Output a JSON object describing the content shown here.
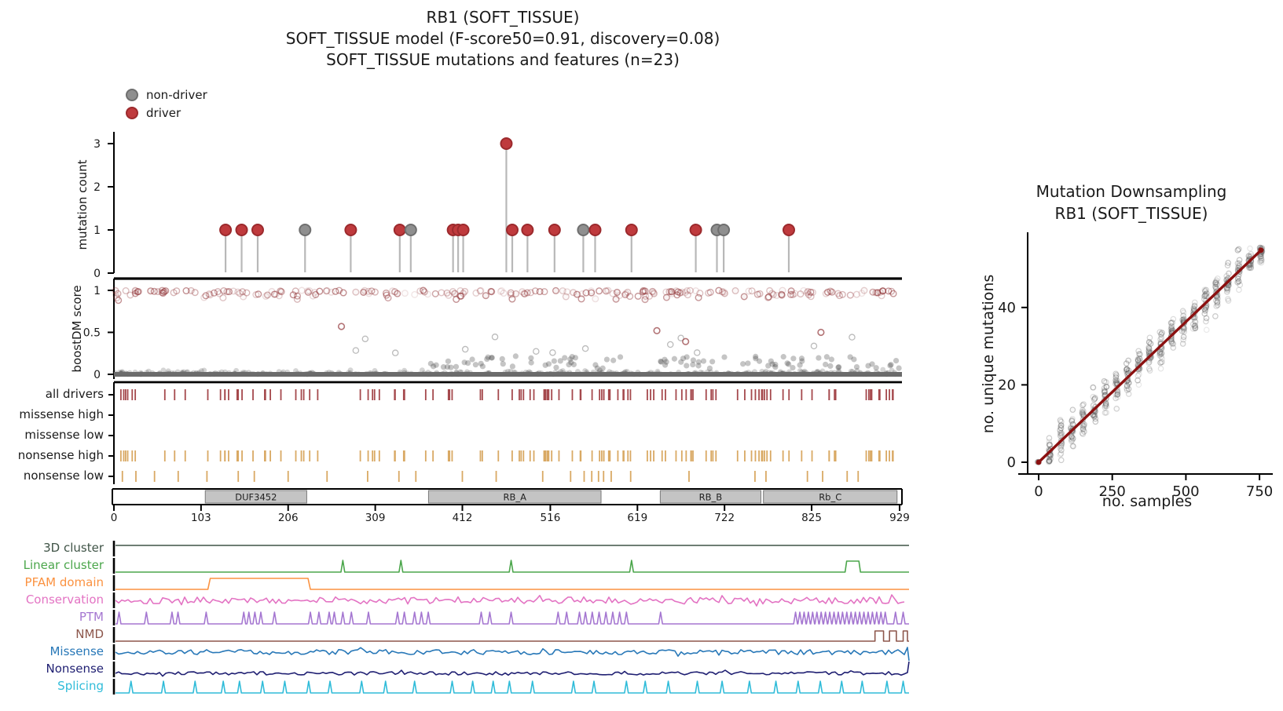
{
  "labels": {
    "title1": "RB1 (SOFT_TISSUE)",
    "title2": "SOFT_TISSUE model (F-score50=0.91, discovery=0.08)",
    "title3": "SOFT_TISSUE mutations and features (n=23)",
    "legend_nondriver": "non-driver",
    "legend_driver": "driver",
    "mutation_ylabel": "mutation count",
    "boostdm_ylabel": "boostDM score",
    "ds_title1": "Mutation Downsampling",
    "ds_title2": "RB1 (SOFT_TISSUE)",
    "ds_xlabel": "no. samples",
    "ds_ylabel": "no. unique mutations"
  },
  "colors": {
    "driver": "#bf3a3d",
    "driver_edge": "#9c2a2d",
    "nondriver": "#8f8f8f",
    "nondriver_edge": "#6f6f6f",
    "stem": "#b8b8b8",
    "boost_red": "#8b2a2d",
    "boost_gray": "#2d2d2d",
    "zero_band": "#6b6b6b",
    "all_drivers_tick": "#a5494d",
    "nonsense_tick": "#d9a964",
    "domain_box_fill": "#c4c4c4",
    "domain_box_edge": "#7a7a7a",
    "ds_dot": "#505050",
    "ds_line": "#8b1010",
    "axis": "#000000"
  },
  "chart_data": [
    {
      "type": "lollipop",
      "id": "mutation_count",
      "ylabel": "mutation count",
      "yticks": [
        0,
        1,
        2,
        3
      ],
      "xlim": [
        0,
        929
      ],
      "n_mutations": 23,
      "points": [
        {
          "x": 132,
          "count": 1,
          "class": "driver"
        },
        {
          "x": 151,
          "count": 1,
          "class": "driver"
        },
        {
          "x": 170,
          "count": 1,
          "class": "driver"
        },
        {
          "x": 226,
          "count": 1,
          "class": "non-driver"
        },
        {
          "x": 280,
          "count": 1,
          "class": "driver"
        },
        {
          "x": 338,
          "count": 1,
          "class": "driver"
        },
        {
          "x": 351,
          "count": 1,
          "class": "non-driver"
        },
        {
          "x": 401,
          "count": 1,
          "class": "driver"
        },
        {
          "x": 407,
          "count": 1,
          "class": "driver"
        },
        {
          "x": 413,
          "count": 1,
          "class": "driver"
        },
        {
          "x": 464,
          "count": 3,
          "class": "driver"
        },
        {
          "x": 471,
          "count": 1,
          "class": "driver"
        },
        {
          "x": 489,
          "count": 1,
          "class": "driver"
        },
        {
          "x": 521,
          "count": 1,
          "class": "driver"
        },
        {
          "x": 555,
          "count": 1,
          "class": "non-driver"
        },
        {
          "x": 569,
          "count": 1,
          "class": "driver"
        },
        {
          "x": 612,
          "count": 1,
          "class": "driver"
        },
        {
          "x": 688,
          "count": 1,
          "class": "driver"
        },
        {
          "x": 713,
          "count": 1,
          "class": "non-driver"
        },
        {
          "x": 721,
          "count": 1,
          "class": "non-driver"
        },
        {
          "x": 798,
          "count": 1,
          "class": "driver"
        }
      ]
    },
    {
      "type": "scatter",
      "id": "boostdm_score",
      "ylabel": "boostDM score",
      "yticks": [
        0,
        0.5,
        1
      ],
      "xlim": [
        0,
        929
      ],
      "bands": {
        "high_band": {
          "n": 230,
          "y_center": 0.96,
          "spread": 0.05,
          "color": "red",
          "seed": 11
        },
        "zero_band": {
          "n": 320,
          "y_center": 0.01,
          "spread": 0.03,
          "color": "gray",
          "seed": 23
        },
        "low_clusters": {
          "n": 95,
          "y_range": [
            0.07,
            0.22
          ],
          "x_ranges": [
            [
              372,
              600
            ],
            [
              640,
              929
            ]
          ],
          "seed": 37
        },
        "sparse_mid": {
          "n": 13,
          "y_range": [
            0.24,
            0.45
          ],
          "x_range": [
            230,
            929
          ],
          "seed": 51
        }
      },
      "red_outliers": [
        {
          "x": 269,
          "y": 0.57
        },
        {
          "x": 642,
          "y": 0.52
        },
        {
          "x": 676,
          "y": 0.39
        },
        {
          "x": 836,
          "y": 0.5
        }
      ]
    },
    {
      "type": "ticks",
      "id": "consequence_tracks",
      "xlim": [
        0,
        929
      ],
      "rows": [
        {
          "label": "all drivers",
          "style": "dark_red",
          "n": 120,
          "seed": 7,
          "gaps": [
            [
              28,
              46
            ],
            [
              254,
              280
            ],
            [
              862,
              888
            ]
          ]
        },
        {
          "label": "missense high",
          "style": "empty"
        },
        {
          "label": "missense low",
          "style": "empty"
        },
        {
          "label": "nonsense high",
          "style": "orange_same_as_all_drivers"
        },
        {
          "label": "nonsense low",
          "style": "orange_sparse",
          "positions": [
            10,
            26,
            48,
            76,
            110,
            147,
            166,
            206,
            252,
            300,
            337,
            357,
            412,
            452,
            507,
            540,
            556,
            565,
            573,
            579,
            588,
            611,
            680,
            758,
            771,
            820,
            838,
            867,
            880
          ]
        }
      ]
    },
    {
      "type": "domain_map",
      "id": "protein_domains",
      "xticks": [
        0,
        103,
        206,
        309,
        412,
        516,
        619,
        722,
        825,
        929
      ],
      "xlim": [
        0,
        929
      ],
      "boxes": [
        {
          "label": "DUF3452",
          "start": 108,
          "end": 228
        },
        {
          "label": "RB_A",
          "start": 372,
          "end": 576
        },
        {
          "label": "RB_B",
          "start": 646,
          "end": 765
        },
        {
          "label": "Rb_C",
          "start": 768,
          "end": 926
        }
      ]
    },
    {
      "type": "line_tracks",
      "id": "feature_tracks",
      "xlim": [
        0,
        929
      ],
      "rows": [
        {
          "label": "3D cluster",
          "color": "#3f5346",
          "kind": "flat"
        },
        {
          "label": "Linear cluster",
          "color": "#4ba64b",
          "kind": "spikes",
          "spikes": [
            268,
            336,
            465,
            606
          ],
          "pulses": [
            [
              856,
              874
            ]
          ]
        },
        {
          "label": "PFAM domain",
          "color": "#fb9240",
          "kind": "step",
          "steps": [
            [
              110,
              230
            ]
          ]
        },
        {
          "label": "Conservation",
          "color": "#e373c3",
          "kind": "noise",
          "amp": 4.5,
          "seed": 101
        },
        {
          "label": "PTM",
          "color": "#a577d1",
          "kind": "spikes",
          "spikes": [
            6,
            38,
            68,
            75,
            108,
            152,
            158,
            165,
            172,
            188,
            230,
            240,
            252,
            258,
            268,
            278,
            298,
            332,
            340,
            352,
            360,
            368,
            430,
            440,
            465,
            520,
            530,
            545,
            552,
            560,
            568,
            576,
            584,
            592,
            600,
            640,
            915,
            924
          ],
          "dense_ranges": [
            [
              798,
              906,
              5
            ]
          ]
        },
        {
          "label": "NMD",
          "color": "#8d574c",
          "kind": "pulse_track",
          "pulses": [
            [
              891,
              901
            ],
            [
              908,
              916
            ],
            [
              924,
              929
            ]
          ]
        },
        {
          "label": "Missense",
          "color": "#2878b8",
          "kind": "noise",
          "amp": 3.2,
          "seed": 202,
          "end_drop": true
        },
        {
          "label": "Nonsense",
          "color": "#1f1f72",
          "kind": "noise",
          "amp": 2.1,
          "seed": 303,
          "low": true,
          "end_spike": true
        },
        {
          "label": "Splicing",
          "color": "#30bcd9",
          "kind": "spikes",
          "spikes": [
            20,
            58,
            95,
            128,
            147,
            174,
            200,
            228,
            253,
            290,
            318,
            352,
            396,
            420,
            444,
            463,
            490,
            538,
            562,
            600,
            622,
            649,
            683,
            712,
            744,
            775,
            801,
            827,
            852,
            876,
            905,
            924
          ]
        }
      ]
    },
    {
      "type": "scatter",
      "id": "mutation_downsampling",
      "title": "Mutation Downsampling RB1 (SOFT_TISSUE)",
      "xlabel": "no. samples",
      "ylabel": "no. unique mutations",
      "xticks": [
        0,
        250,
        500,
        750
      ],
      "yticks": [
        0,
        20,
        40
      ],
      "n_columns": 21,
      "x_step": 37.75,
      "x_max": 755,
      "y_max": 55.5,
      "points_per_column": 26,
      "seed": 77,
      "trend_line": {
        "x1": 0,
        "y1": 0,
        "x2": 755,
        "y2": 54.8
      }
    }
  ]
}
